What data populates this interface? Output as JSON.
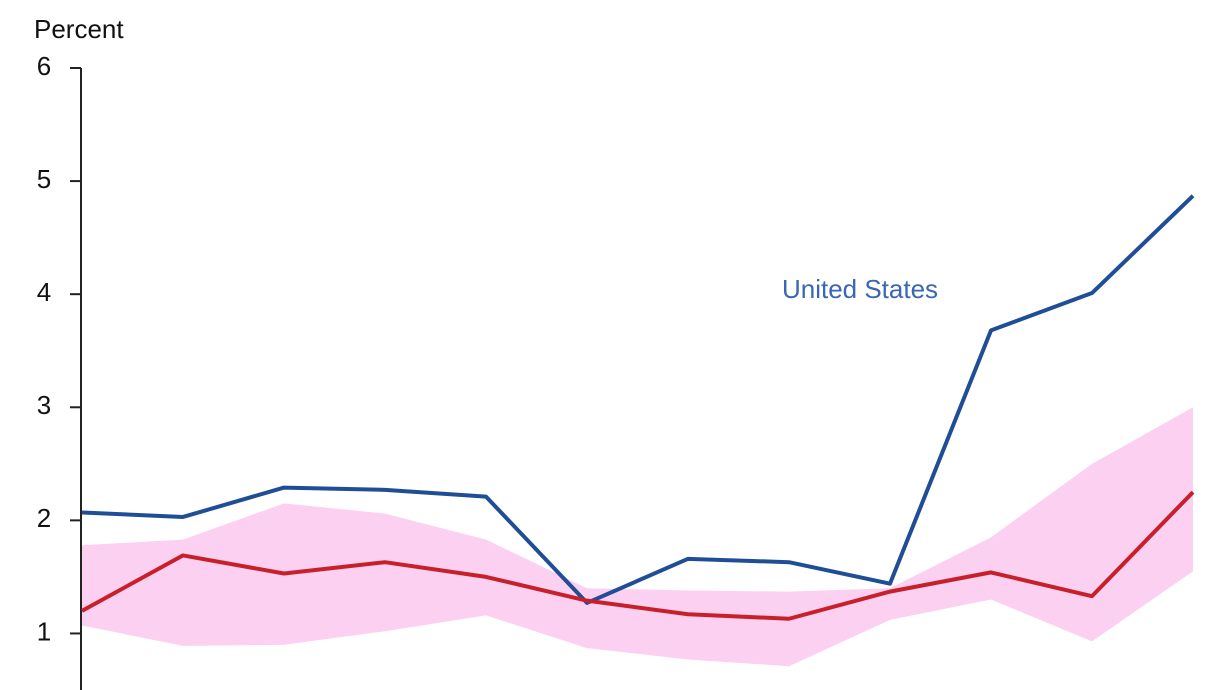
{
  "chart_data": {
    "type": "line",
    "y_label": "Percent",
    "categories": [
      null,
      null,
      null,
      null,
      null,
      null,
      null,
      null,
      null,
      null,
      null,
      null
    ],
    "band": {
      "color": "#fbd0f0",
      "upper": [
        1.78,
        1.83,
        2.15,
        2.06,
        1.83,
        1.4,
        1.38,
        1.37,
        1.4,
        1.85,
        2.5,
        3.0
      ],
      "lower": [
        1.07,
        0.89,
        0.9,
        1.02,
        1.16,
        0.87,
        0.77,
        0.71,
        1.12,
        1.3,
        0.93,
        1.55
      ]
    },
    "series": [
      {
        "name": "United States",
        "color": "#1f4e96",
        "values": [
          2.07,
          2.03,
          2.29,
          2.27,
          2.21,
          1.27,
          1.66,
          1.63,
          1.44,
          3.68,
          4.01,
          4.87
        ]
      },
      {
        "color": "#c8202a",
        "values": [
          1.2,
          1.69,
          1.53,
          1.63,
          1.5,
          1.29,
          1.17,
          1.13,
          1.37,
          1.54,
          1.33,
          2.25
        ]
      }
    ],
    "ylim": [
      0.5,
      6
    ],
    "yticks": [
      1,
      2,
      3,
      4,
      5,
      6
    ]
  }
}
